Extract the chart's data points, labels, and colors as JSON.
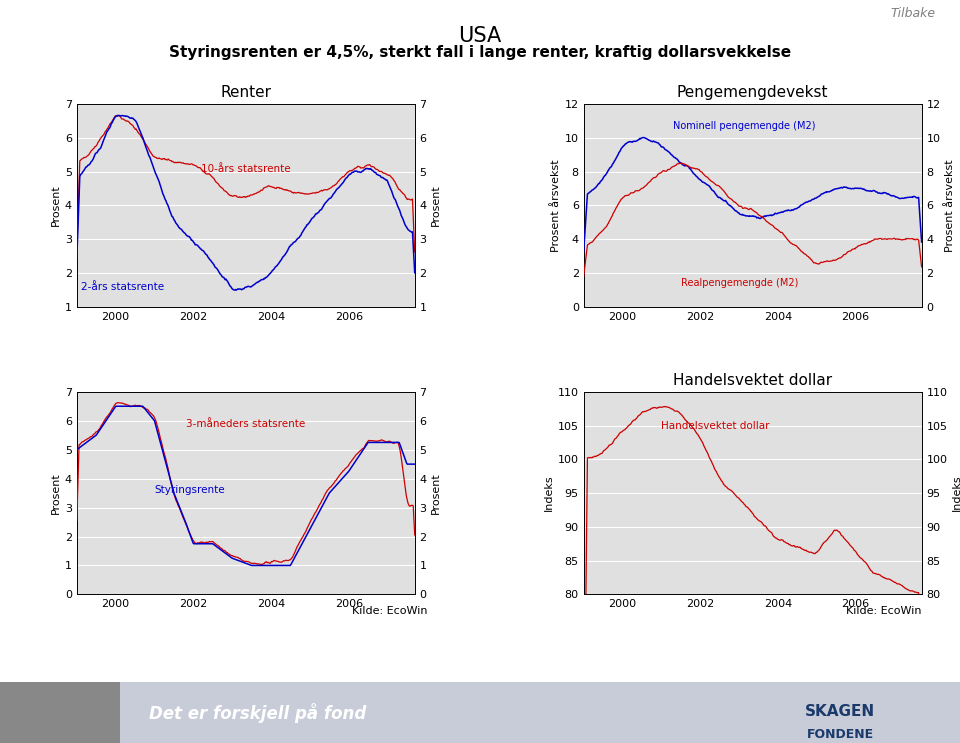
{
  "title_line1": "USA",
  "title_line2": "Styringsrenten er 4,5%, sterkt fall i lange renter, kraftig dollarsvekkelse",
  "tilbake": "Tilbake",
  "renter_title": "Renter",
  "pengemengde_title": "Pengemengdevekst",
  "handelsvektet_title": "Handelsvektet dollar",
  "kilde": "Kilde: EcoWin",
  "background_color": "#ffffff",
  "plot_bg": "#e0e0e0",
  "red_color": "#cc0000",
  "blue_color": "#0000cc",
  "footer_bg": "#c8ccd8",
  "footer_img_bg": "#888888",
  "footer_text": "Det er forskjell på fond",
  "footer_text_color": "#ffffff",
  "skagen_color": "#1a3a6b"
}
